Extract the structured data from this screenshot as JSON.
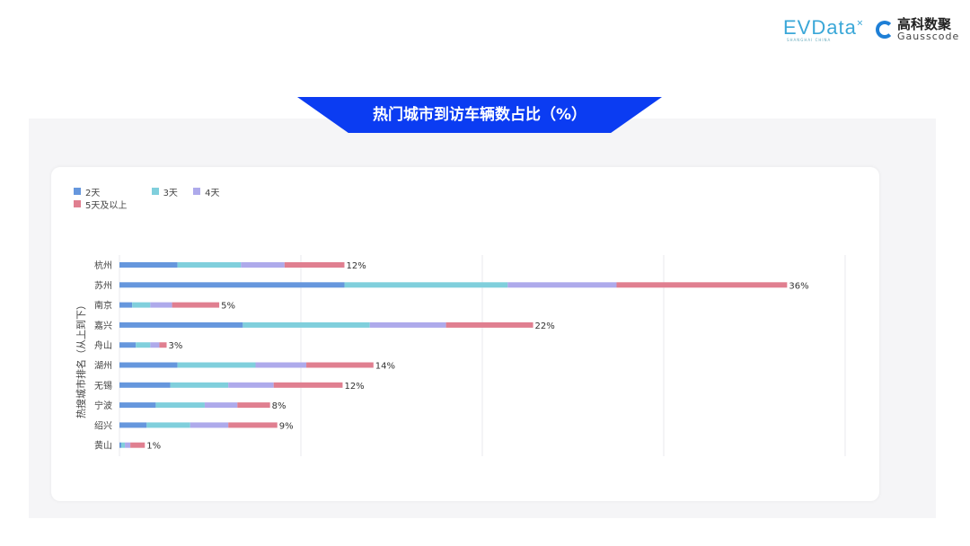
{
  "logos": {
    "evdata": "EVData",
    "evdata_sub": "SHANGHAI CHINA",
    "gauss_cn": "高科数聚",
    "gauss_en": "Gausscode"
  },
  "banner_title": "热门城市到访车辆数占比（%）",
  "chart_data": {
    "type": "bar",
    "orientation": "horizontal",
    "stacked": true,
    "ylabel": "热搜城市排名（从上到下）",
    "categories": [
      "杭州",
      "苏州",
      "南京",
      "嘉兴",
      "舟山",
      "湖州",
      "无锡",
      "宁波",
      "绍兴",
      "黄山"
    ],
    "series": [
      {
        "name": "2天",
        "color": "#6697dd",
        "values": [
          3.2,
          12.4,
          0.7,
          6.8,
          0.9,
          3.2,
          2.8,
          2.0,
          1.5,
          0.1
        ]
      },
      {
        "name": "3天",
        "color": "#80cfdc",
        "values": [
          3.5,
          9.0,
          1.0,
          7.0,
          0.8,
          4.3,
          3.2,
          2.7,
          2.4,
          0.2
        ]
      },
      {
        "name": "4天",
        "color": "#aeaaeb",
        "values": [
          2.4,
          6.0,
          1.2,
          4.2,
          0.5,
          2.8,
          2.5,
          1.8,
          2.1,
          0.3
        ]
      },
      {
        "name": "5天及以上",
        "color": "#e07f90",
        "values": [
          3.3,
          9.4,
          2.6,
          4.8,
          0.4,
          3.7,
          3.8,
          1.8,
          2.7,
          0.8
        ]
      }
    ],
    "total_labels": [
      "12%",
      "36%",
      "5%",
      "22%",
      "3%",
      "14%",
      "12%",
      "8%",
      "9%",
      "1%"
    ],
    "xlim": [
      0,
      40
    ],
    "grid": true,
    "legend": "top-left"
  }
}
